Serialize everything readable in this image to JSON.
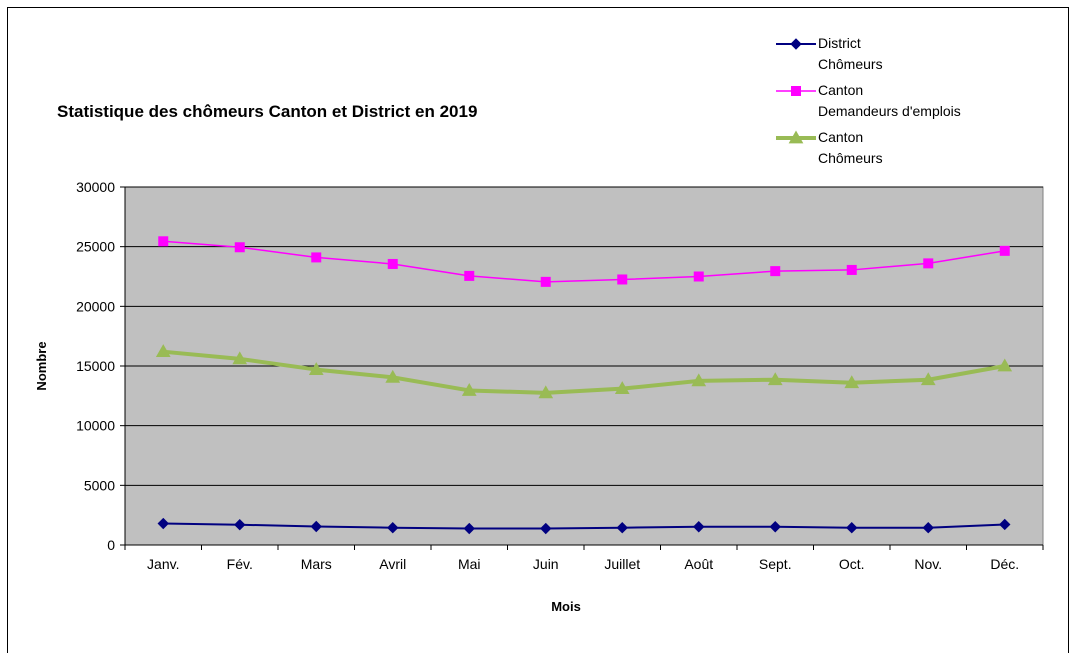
{
  "chart_data": {
    "type": "line",
    "title": "Statistique  des chômeurs  Canton et District  en 2019",
    "xlabel": "Mois",
    "ylabel": "Nombre",
    "ylim": [
      0,
      30000
    ],
    "yticks": [
      0,
      5000,
      10000,
      15000,
      20000,
      25000,
      30000
    ],
    "grid": "horizontal",
    "legend_position": "top-right",
    "plot_background": "#c0c0c0",
    "categories": [
      "Janv.",
      "Fév.",
      "Mars",
      "Avril",
      "Mai",
      "Juin",
      "Juillet",
      "Août",
      "Sept.",
      "Oct.",
      "Nov.",
      "Déc."
    ],
    "series": [
      {
        "name_line1": "District",
        "name_line2": "Chômeurs",
        "color": "#000080",
        "marker": "diamond",
        "values": [
          1800,
          1700,
          1550,
          1450,
          1380,
          1380,
          1450,
          1530,
          1530,
          1450,
          1450,
          1720
        ]
      },
      {
        "name_line1": "Canton",
        "name_line2": "Demandeurs d'emplois",
        "color": "#ff00ff",
        "marker": "square",
        "values": [
          25450,
          24950,
          24100,
          23550,
          22550,
          22050,
          22250,
          22500,
          22950,
          23050,
          23600,
          24650
        ]
      },
      {
        "name_line1": "Canton",
        "name_line2": "Chômeurs",
        "color": "#99bb55",
        "marker": "triangle",
        "values": [
          16200,
          15600,
          14700,
          14050,
          12950,
          12750,
          13100,
          13750,
          13850,
          13600,
          13850,
          15000
        ]
      }
    ]
  }
}
